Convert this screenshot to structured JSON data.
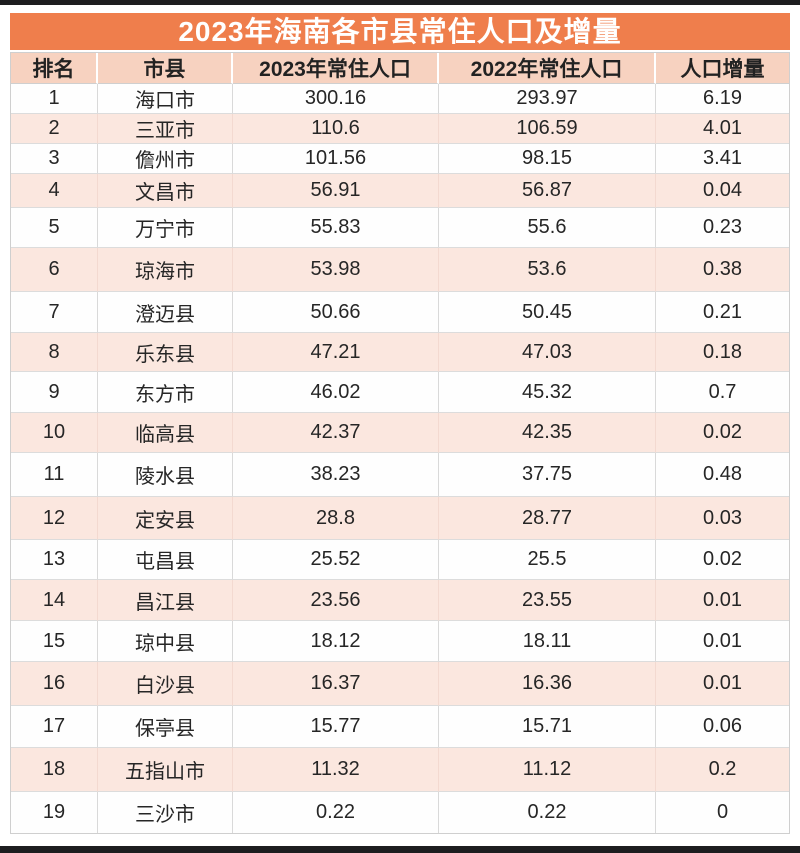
{
  "chart_data": {
    "type": "table",
    "title": "2023年海南各市县常住人口及增量",
    "columns": [
      "排名",
      "市县",
      "2023年常住人口",
      "2022年常住人口",
      "人口增量"
    ],
    "rows": [
      [
        "1",
        "海口市",
        "300.16",
        "293.97",
        "6.19"
      ],
      [
        "2",
        "三亚市",
        "110.6",
        "106.59",
        "4.01"
      ],
      [
        "3",
        "儋州市",
        "101.56",
        "98.15",
        "3.41"
      ],
      [
        "4",
        "文昌市",
        "56.91",
        "56.87",
        "0.04"
      ],
      [
        "5",
        "万宁市",
        "55.83",
        "55.6",
        "0.23"
      ],
      [
        "6",
        "琼海市",
        "53.98",
        "53.6",
        "0.38"
      ],
      [
        "7",
        "澄迈县",
        "50.66",
        "50.45",
        "0.21"
      ],
      [
        "8",
        "乐东县",
        "47.21",
        "47.03",
        "0.18"
      ],
      [
        "9",
        "东方市",
        "46.02",
        "45.32",
        "0.7"
      ],
      [
        "10",
        "临高县",
        "42.37",
        "42.35",
        "0.02"
      ],
      [
        "11",
        "陵水县",
        "38.23",
        "37.75",
        "0.48"
      ],
      [
        "12",
        "定安县",
        "28.8",
        "28.77",
        "0.03"
      ],
      [
        "13",
        "屯昌县",
        "25.52",
        "25.5",
        "0.02"
      ],
      [
        "14",
        "昌江县",
        "23.56",
        "23.55",
        "0.01"
      ],
      [
        "15",
        "琼中县",
        "18.12",
        "18.11",
        "0.01"
      ],
      [
        "16",
        "白沙县",
        "16.37",
        "16.36",
        "0.01"
      ],
      [
        "17",
        "保亭县",
        "15.77",
        "15.71",
        "0.06"
      ],
      [
        "18",
        "五指山市",
        "11.32",
        "11.12",
        "0.2"
      ],
      [
        "19",
        "三沙市",
        "0.22",
        "0.22",
        "0"
      ]
    ]
  },
  "colors": {
    "title_bar_orange": "#ef7e4c",
    "title_text": "#ffffff",
    "header_salmon": "#f7d2c0",
    "stripe_pink": "#fbe7df",
    "row_white": "#fefefe",
    "border_gray": "#d9d9d9",
    "frame_dark": "#1d1d1f",
    "text_dark": "#262626"
  }
}
